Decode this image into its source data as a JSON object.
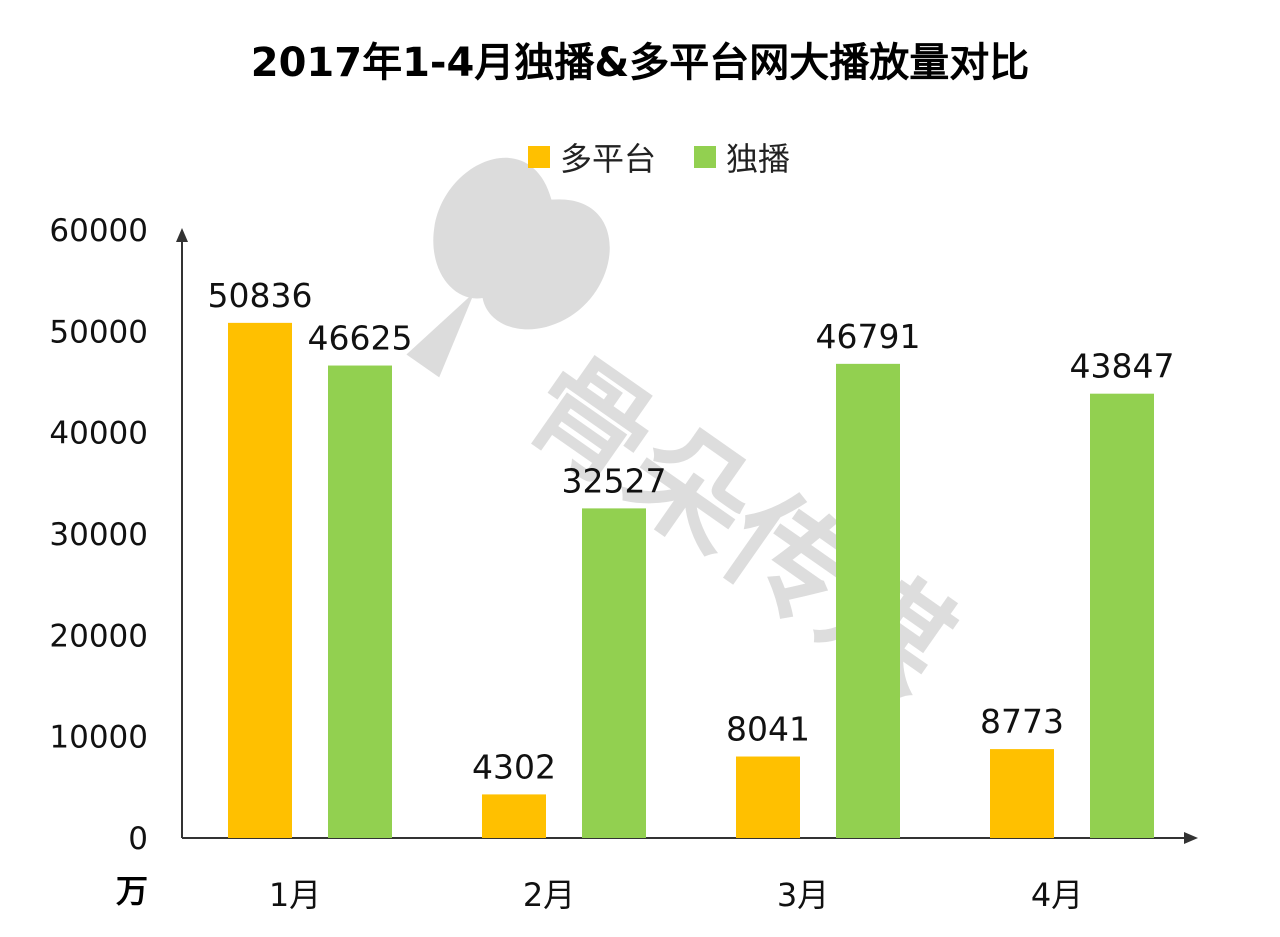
{
  "chart_data": {
    "type": "bar",
    "title": "2017年1-4月独播&多平台网大播放量对比",
    "categories": [
      "1月",
      "2月",
      "3月",
      "4月"
    ],
    "series": [
      {
        "name": "多平台",
        "color": "#FFC000",
        "values": [
          50836,
          4302,
          8041,
          8773
        ]
      },
      {
        "name": "独播",
        "color": "#92D050",
        "values": [
          46625,
          32527,
          46791,
          43847
        ]
      }
    ],
    "ylim": [
      0,
      60000
    ],
    "yticks": [
      0,
      10000,
      20000,
      30000,
      40000,
      50000,
      60000
    ],
    "ylabel": "",
    "xlabel": "",
    "unit_label": "万",
    "legend_position": "top",
    "grid": false
  },
  "watermark": {
    "text": "骨朵传媒",
    "icon": "flower-logo-icon"
  }
}
